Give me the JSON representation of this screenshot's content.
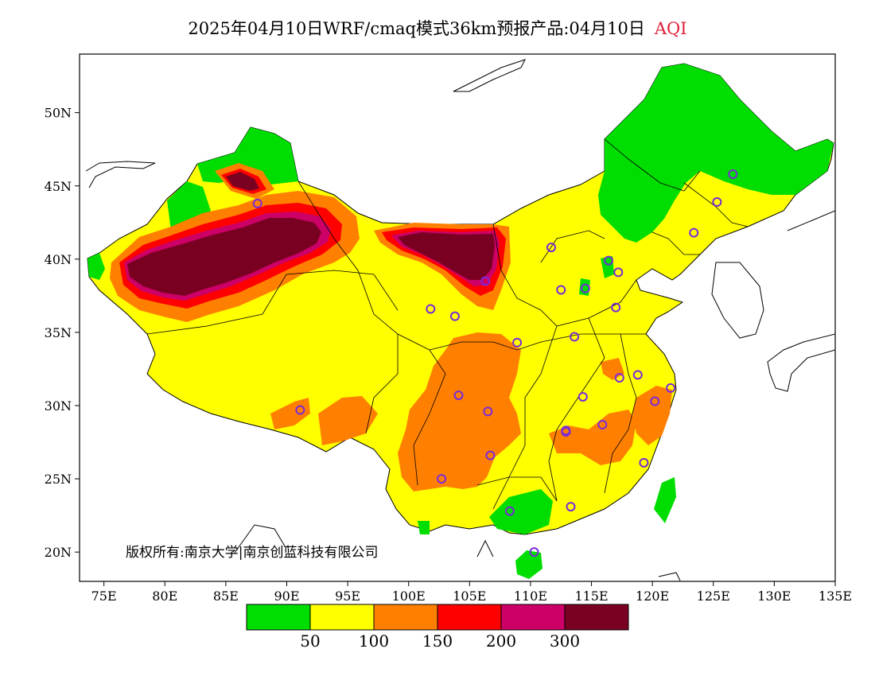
{
  "title": {
    "main": "2025年04月10日WRF/cmaq模式36km预报产品:04月10日",
    "variable": "AQI"
  },
  "map": {
    "lon_ticks": [
      "75E",
      "80E",
      "85E",
      "90E",
      "95E",
      "100E",
      "105E",
      "110E",
      "115E",
      "120E",
      "125E",
      "130E",
      "135E"
    ],
    "lat_ticks": [
      "50N",
      "45N",
      "40N",
      "35N",
      "30N",
      "25N",
      "20N"
    ],
    "lon_range": [
      73,
      135
    ],
    "lat_range": [
      18,
      54
    ]
  },
  "copyright": "版权所有:南京大学|南京创蓝科技有限公司",
  "colorbar": {
    "colors": [
      "#00dd00",
      "#ffff00",
      "#ff8000",
      "#ff0000",
      "#cc0066",
      "#7a0022"
    ],
    "labels": [
      "50",
      "100",
      "150",
      "200",
      "300"
    ]
  },
  "stations": [
    [
      87.6,
      43.8
    ],
    [
      91.1,
      29.7
    ],
    [
      101.8,
      36.6
    ],
    [
      103.8,
      36.1
    ],
    [
      106.3,
      38.5
    ],
    [
      104.1,
      30.7
    ],
    [
      106.5,
      29.6
    ],
    [
      106.7,
      26.6
    ],
    [
      102.7,
      25.0
    ],
    [
      108.3,
      22.8
    ],
    [
      110.3,
      20.0
    ],
    [
      108.9,
      34.3
    ],
    [
      111.7,
      40.8
    ],
    [
      112.5,
      37.9
    ],
    [
      113.6,
      34.7
    ],
    [
      114.5,
      38.0
    ],
    [
      116.4,
      39.9
    ],
    [
      117.2,
      39.1
    ],
    [
      117.0,
      36.7
    ],
    [
      114.3,
      30.6
    ],
    [
      112.9,
      28.2
    ],
    [
      115.9,
      28.7
    ],
    [
      117.3,
      31.9
    ],
    [
      118.8,
      32.1
    ],
    [
      120.2,
      30.3
    ],
    [
      121.5,
      31.2
    ],
    [
      119.3,
      26.1
    ],
    [
      113.3,
      23.1
    ],
    [
      123.4,
      41.8
    ],
    [
      125.3,
      43.9
    ],
    [
      126.6,
      45.8
    ],
    [
      112.9,
      28.3
    ]
  ]
}
